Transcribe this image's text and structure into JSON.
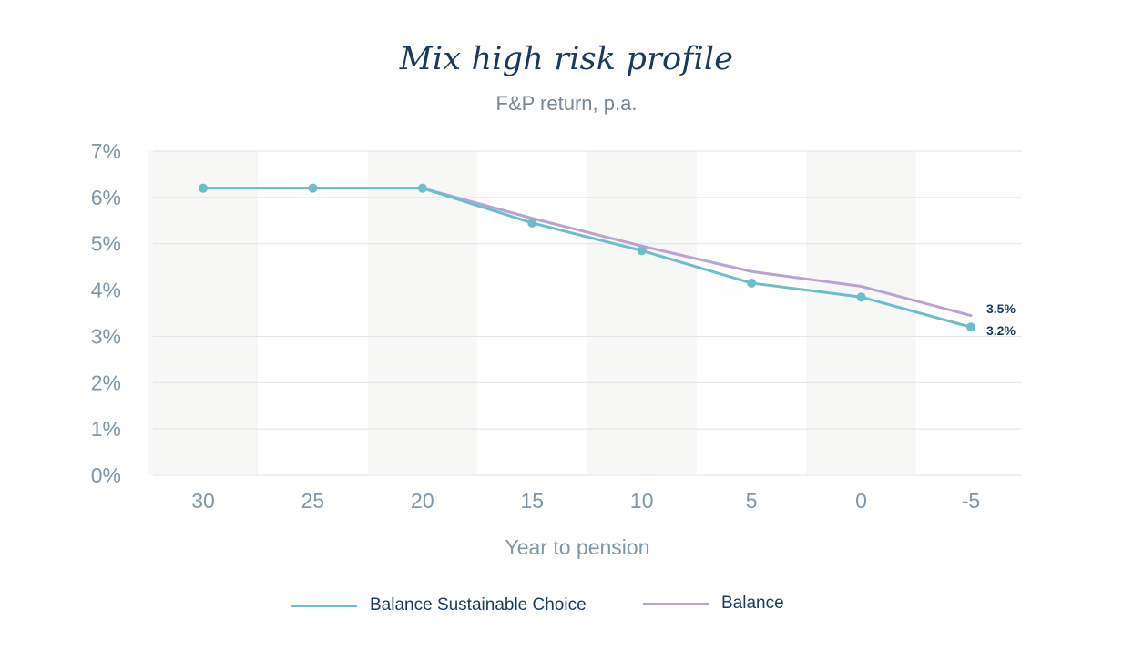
{
  "chart_data": {
    "type": "line",
    "title": "Mix high risk profile",
    "subtitle": "F&P return, p.a.",
    "xlabel": "Year to pension",
    "ylabel": "",
    "x": [
      30,
      25,
      20,
      15,
      10,
      5,
      0,
      -5
    ],
    "x_tick_labels": [
      "30",
      "25",
      "20",
      "15",
      "10",
      "5",
      "0",
      "-5"
    ],
    "y_tick_labels": [
      "0%",
      "1%",
      "2%",
      "3%",
      "4%",
      "5%",
      "6%",
      "7%"
    ],
    "ylim": [
      0,
      7
    ],
    "grid": "horizontal",
    "alternating_column_shading": true,
    "legend_position": "bottom",
    "series": [
      {
        "name": "Balance Sustainable Choice",
        "color": "#6dbdcc",
        "markers": true,
        "values": [
          6.2,
          6.2,
          6.2,
          5.45,
          4.85,
          4.15,
          3.85,
          3.2
        ],
        "end_label": "3.2%"
      },
      {
        "name": "Balance",
        "color": "#b9a4d1",
        "markers": false,
        "values": [
          6.2,
          6.2,
          6.2,
          5.55,
          4.95,
          4.4,
          4.08,
          3.45
        ],
        "end_label": "3.5%"
      }
    ]
  },
  "colors": {
    "title": "#1b3a5c",
    "axis_text": "#7f97a6",
    "gridline": "#dfe3e6",
    "shading": "#f7f7f5",
    "end_label": "#1b3a5c"
  }
}
